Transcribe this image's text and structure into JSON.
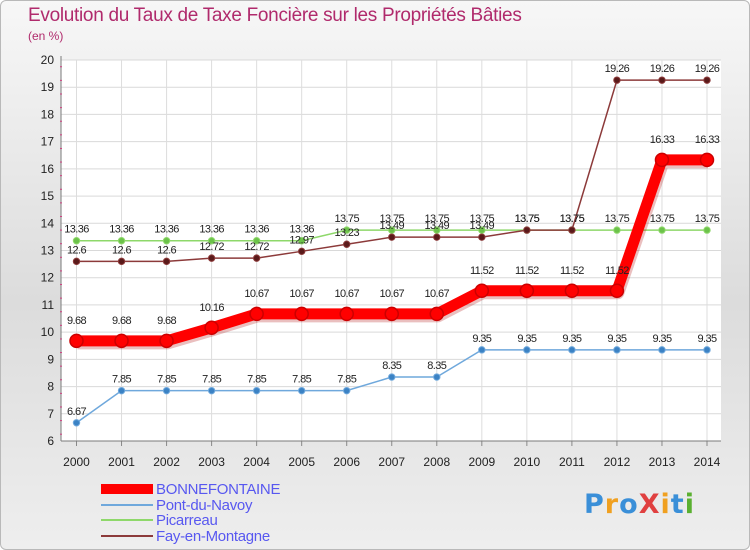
{
  "chart_data": {
    "type": "line",
    "title": "Evolution du Taux de Taxe Foncière sur les Propriétés Bâties",
    "ylabel": "(en %)",
    "xlabel": "",
    "ylim": [
      6,
      20
    ],
    "yticks": [
      6,
      7,
      8,
      9,
      10,
      11,
      12,
      13,
      14,
      15,
      16,
      17,
      18,
      19,
      20
    ],
    "categories": [
      "2000",
      "2001",
      "2002",
      "2003",
      "2004",
      "2005",
      "2006",
      "2007",
      "2008",
      "2009",
      "2010",
      "2011",
      "2012",
      "2013",
      "2014"
    ],
    "grid": true,
    "legend_position": "bottom-left",
    "series": [
      {
        "name": "BONNEFONTAINE",
        "color": "#ff0000",
        "marker_color": "#cc0000",
        "legend_color": "#5858f0",
        "emphasis": true,
        "values": [
          9.68,
          9.68,
          9.68,
          10.16,
          10.67,
          10.67,
          10.67,
          10.67,
          10.67,
          11.52,
          11.52,
          11.52,
          11.52,
          16.33,
          16.33
        ],
        "labels": [
          "9.68",
          "9.68",
          "9.68",
          "10.16",
          "10.67",
          "10.67",
          "10.67",
          "10.67",
          "10.67",
          "11.52",
          "11.52",
          "11.52",
          "11.52",
          "16.33",
          "16.33"
        ]
      },
      {
        "name": "Pont-du-Navoy",
        "color": "#6fa8dc",
        "marker_color": "#3b82c4",
        "legend_color": "#5858f0",
        "emphasis": false,
        "values": [
          6.67,
          7.85,
          7.85,
          7.85,
          7.85,
          7.85,
          7.85,
          8.35,
          8.35,
          9.35,
          9.35,
          9.35,
          9.35,
          9.35,
          9.35
        ],
        "labels": [
          "6.67",
          "7.85",
          "7.85",
          "7.85",
          "7.85",
          "7.85",
          "7.85",
          "8.35",
          "8.35",
          "9.35",
          "9.35",
          "9.35",
          "9.35",
          "9.35",
          "9.35"
        ]
      },
      {
        "name": "Picarreau",
        "color": "#8ed86a",
        "marker_color": "#6cc24a",
        "legend_color": "#5858f0",
        "emphasis": false,
        "values": [
          13.36,
          13.36,
          13.36,
          13.36,
          13.36,
          13.36,
          13.75,
          13.75,
          13.75,
          13.75,
          13.75,
          13.75,
          13.75,
          13.75,
          13.75
        ],
        "labels": [
          "13.36",
          "13.36",
          "13.36",
          "13.36",
          "13.36",
          "13.36",
          "13.75",
          "13.75",
          "13.75",
          "13.75",
          "13.75",
          "13.75",
          "13.75",
          "13.75",
          "13.75"
        ]
      },
      {
        "name": "Fay-en-Montagne",
        "color": "#8c3a3a",
        "marker_color": "#5a1a1a",
        "legend_color": "#5858f0",
        "emphasis": false,
        "values": [
          12.6,
          12.6,
          12.6,
          12.72,
          12.72,
          12.97,
          13.23,
          13.49,
          13.49,
          13.49,
          13.75,
          13.75,
          19.26,
          19.26,
          19.26
        ],
        "labels": [
          "12.6",
          "12.6",
          "12.6",
          "12.72",
          "12.72",
          "12.97",
          "13.23",
          "13.49",
          "13.49",
          "13.49",
          "13.75",
          "13.75",
          "19.26",
          "19.26",
          "19.26"
        ]
      }
    ]
  },
  "logo": {
    "text": "ProXiti",
    "letters": [
      "P",
      "r",
      "o",
      "X",
      "i",
      "t",
      "i"
    ],
    "colors": [
      "#3a8fd8",
      "#f0a020",
      "#3a8fd8",
      "#e04040",
      "#f0a020",
      "#3a8fd8",
      "#5ab030"
    ]
  }
}
